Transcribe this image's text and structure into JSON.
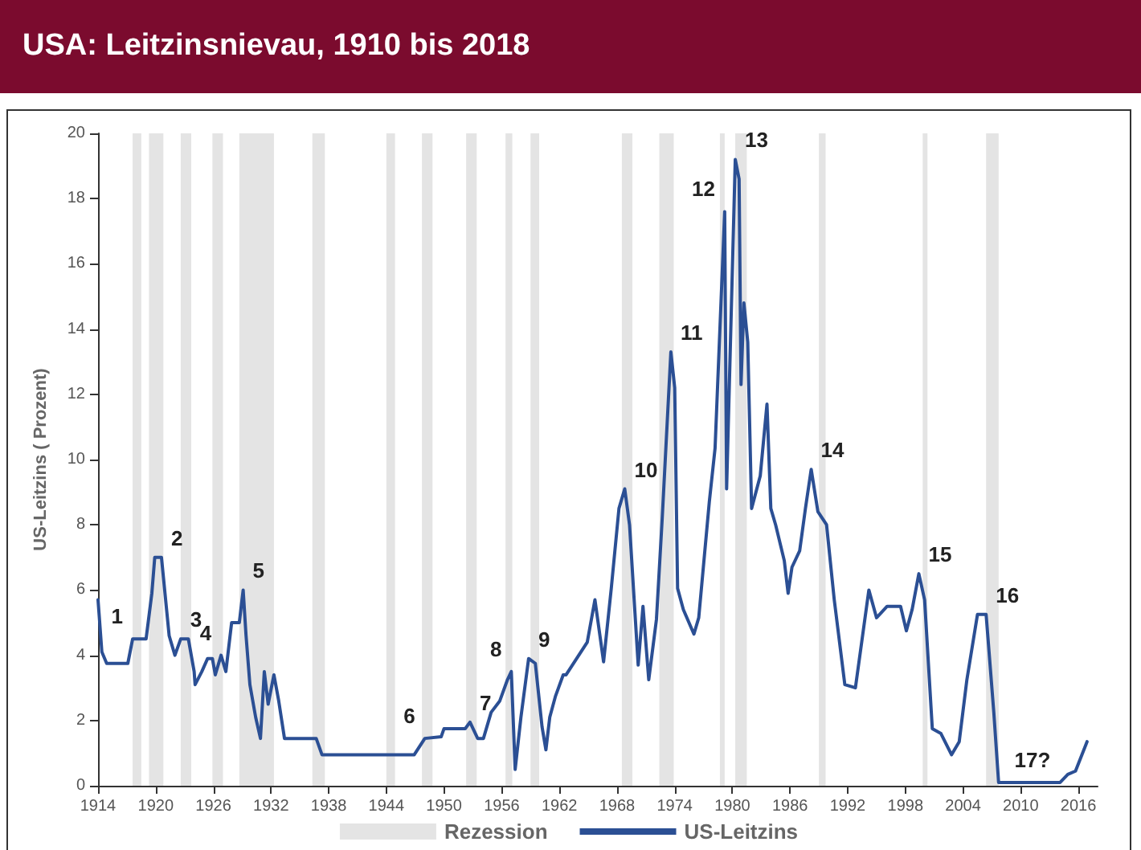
{
  "chart_data": {
    "type": "line",
    "title": "USA: Leitzinsnievau, 1910 bis 2018",
    "ylabel": "US-Leitzins ( Prozent)",
    "xlim": [
      1914,
      2018
    ],
    "xticks": [
      1914,
      1920,
      1926,
      1932,
      1938,
      1944,
      1950,
      1956,
      1962,
      1968,
      1974,
      1980,
      1986,
      1992,
      1998,
      2004,
      2010,
      2016
    ],
    "ylim": [
      0,
      20
    ],
    "yticks": [
      0,
      2,
      4,
      6,
      8,
      10,
      12,
      14,
      16,
      18,
      20
    ],
    "grid": false,
    "legend": "bottom",
    "marker": "none",
    "line_style": "solid",
    "series": [
      {
        "name": "US-Leitzins",
        "color": "#2b4f94",
        "x": [
          1914,
          1914.4,
          1914.9,
          1917.1,
          1917.6,
          1919,
          1919.6,
          1919.9,
          1920.6,
          1921.4,
          1922,
          1922.6,
          1923.4,
          1924,
          1924.1,
          1924.8,
          1925.4,
          1925.9,
          1926.2,
          1926.8,
          1927.3,
          1927.9,
          1928.7,
          1929.1,
          1929.4,
          1929.8,
          1930.4,
          1930.9,
          1931.3,
          1931.7,
          1932.3,
          1932.8,
          1933.4,
          1936.7,
          1937.3,
          1946.9,
          1948,
          1949.7,
          1950,
          1952.2,
          1952.7,
          1953.5,
          1954.1,
          1954.9,
          1955.8,
          1956.6,
          1957,
          1957.4,
          1958,
          1958.8,
          1959.5,
          1960.2,
          1960.6,
          1961,
          1961.6,
          1962.4,
          1962.7,
          1963.8,
          1964.9,
          1965.7,
          1966.6,
          1967.4,
          1968.2,
          1968.8,
          1969.3,
          1970.2,
          1970.7,
          1971.3,
          1972.1,
          1972.7,
          1973.6,
          1974,
          1974.3,
          1974.9,
          1976,
          1976.5,
          1977.6,
          1978.2,
          1979.2,
          1979.4,
          1980.3,
          1980.7,
          1980.9,
          1981.2,
          1981.6,
          1982,
          1982.9,
          1983.6,
          1984,
          1984.5,
          1985.4,
          1985.8,
          1986.2,
          1987,
          1987.6,
          1988.2,
          1988.9,
          1989.8,
          1990.6,
          1991.7,
          1992.8,
          1994.2,
          1995,
          1996.1,
          1997.5,
          1998.1,
          1998.7,
          1999.4,
          2000,
          2000.8,
          2001.7,
          2002.8,
          2003.6,
          2004.4,
          2005.5,
          2006.4,
          2007.2,
          2007.7,
          2009.1,
          2014.1,
          2014.9,
          2015.7,
          2016.9
        ],
        "values": [
          5.7,
          4.1,
          3.75,
          3.75,
          4.5,
          4.5,
          5.9,
          7.0,
          7.0,
          4.6,
          4.0,
          4.5,
          4.5,
          3.5,
          3.1,
          3.5,
          3.9,
          3.9,
          3.4,
          4.0,
          3.5,
          5.0,
          5.0,
          6.0,
          4.6,
          3.1,
          2.1,
          1.45,
          3.5,
          2.5,
          3.4,
          2.6,
          1.45,
          1.45,
          0.95,
          0.95,
          1.45,
          1.5,
          1.75,
          1.75,
          1.95,
          1.45,
          1.45,
          2.25,
          2.6,
          3.25,
          3.5,
          0.5,
          2.1,
          3.9,
          3.75,
          1.8,
          1.1,
          2.1,
          2.75,
          3.4,
          3.4,
          3.9,
          4.4,
          5.7,
          3.8,
          6.05,
          8.5,
          9.1,
          8.0,
          3.7,
          5.5,
          3.25,
          5.1,
          8.2,
          13.3,
          12.2,
          6.05,
          5.4,
          4.65,
          5.15,
          8.7,
          10.35,
          17.6,
          9.1,
          19.2,
          18.6,
          12.3,
          14.8,
          13.6,
          8.5,
          9.5,
          11.7,
          8.5,
          8.0,
          6.9,
          5.9,
          6.7,
          7.2,
          8.5,
          9.7,
          8.4,
          8.0,
          5.7,
          3.1,
          3.0,
          6.0,
          5.15,
          5.5,
          5.5,
          4.75,
          5.4,
          6.5,
          5.7,
          1.75,
          1.6,
          0.95,
          1.35,
          3.25,
          5.25,
          5.25,
          2.25,
          0.1,
          0.1,
          0.1,
          0.35,
          0.45,
          1.35
        ]
      }
    ],
    "bands": [
      {
        "axis": "x",
        "from": 1917.6,
        "to": 1918.5,
        "label": "Rezession",
        "color": "#e4e4e4"
      },
      {
        "axis": "x",
        "from": 1919.3,
        "to": 1920.8,
        "color": "#e4e4e4"
      },
      {
        "axis": "x",
        "from": 1922.6,
        "to": 1923.7,
        "color": "#e4e4e4"
      },
      {
        "axis": "x",
        "from": 1925.9,
        "to": 1927,
        "color": "#e4e4e4"
      },
      {
        "axis": "x",
        "from": 1928.7,
        "to": 1932.3,
        "color": "#e4e4e4"
      },
      {
        "axis": "x",
        "from": 1936.3,
        "to": 1937.6,
        "color": "#e4e4e4"
      },
      {
        "axis": "x",
        "from": 1944,
        "to": 1944.9,
        "color": "#e4e4e4"
      },
      {
        "axis": "x",
        "from": 1947.7,
        "to": 1948.8,
        "color": "#e4e4e4"
      },
      {
        "axis": "x",
        "from": 1952.3,
        "to": 1953.4,
        "color": "#e4e4e4"
      },
      {
        "axis": "x",
        "from": 1956.4,
        "to": 1957.1,
        "color": "#e4e4e4"
      },
      {
        "axis": "x",
        "from": 1959,
        "to": 1959.9,
        "color": "#e4e4e4"
      },
      {
        "axis": "x",
        "from": 1968.5,
        "to": 1969.6,
        "color": "#e4e4e4"
      },
      {
        "axis": "x",
        "from": 1972.4,
        "to": 1973.9,
        "color": "#e4e4e4"
      },
      {
        "axis": "x",
        "from": 1978.7,
        "to": 1979.2,
        "color": "#e4e4e4"
      },
      {
        "axis": "x",
        "from": 1980.3,
        "to": 1981.5,
        "color": "#e4e4e4"
      },
      {
        "axis": "x",
        "from": 1989,
        "to": 1989.7,
        "color": "#e4e4e4"
      },
      {
        "axis": "x",
        "from": 1999.8,
        "to": 2000.3,
        "color": "#e4e4e4"
      },
      {
        "axis": "x",
        "from": 2006.4,
        "to": 2007.7,
        "color": "#e4e4e4"
      }
    ],
    "annotations": [
      {
        "text": "1",
        "x": 1917.6,
        "y": 4.5
      },
      {
        "text": "2",
        "x": 1920.6,
        "y": 7.0
      },
      {
        "text": "3",
        "x": 1922.6,
        "y": 4.5
      },
      {
        "text": "4",
        "x": 1926.8,
        "y": 4.0
      },
      {
        "text": "5",
        "x": 1929.1,
        "y": 6.0
      },
      {
        "text": "6",
        "x": 1948,
        "y": 1.45
      },
      {
        "text": "7",
        "x": 1952.7,
        "y": 1.95
      },
      {
        "text": "8",
        "x": 1957,
        "y": 3.5
      },
      {
        "text": "9",
        "x": 1958.8,
        "y": 3.9
      },
      {
        "text": "10",
        "x": 1968.8,
        "y": 9.1
      },
      {
        "text": "11",
        "x": 1973.6,
        "y": 13.3
      },
      {
        "text": "12",
        "x": 1979.2,
        "y": 17.6
      },
      {
        "text": "13",
        "x": 1980.3,
        "y": 19.2
      },
      {
        "text": "14",
        "x": 1988.2,
        "y": 9.7
      },
      {
        "text": "15",
        "x": 1999.4,
        "y": 6.5
      },
      {
        "text": "16",
        "x": 2006.4,
        "y": 5.25
      },
      {
        "text": "17?",
        "x": 2014.1,
        "y": 0.1
      }
    ]
  }
}
